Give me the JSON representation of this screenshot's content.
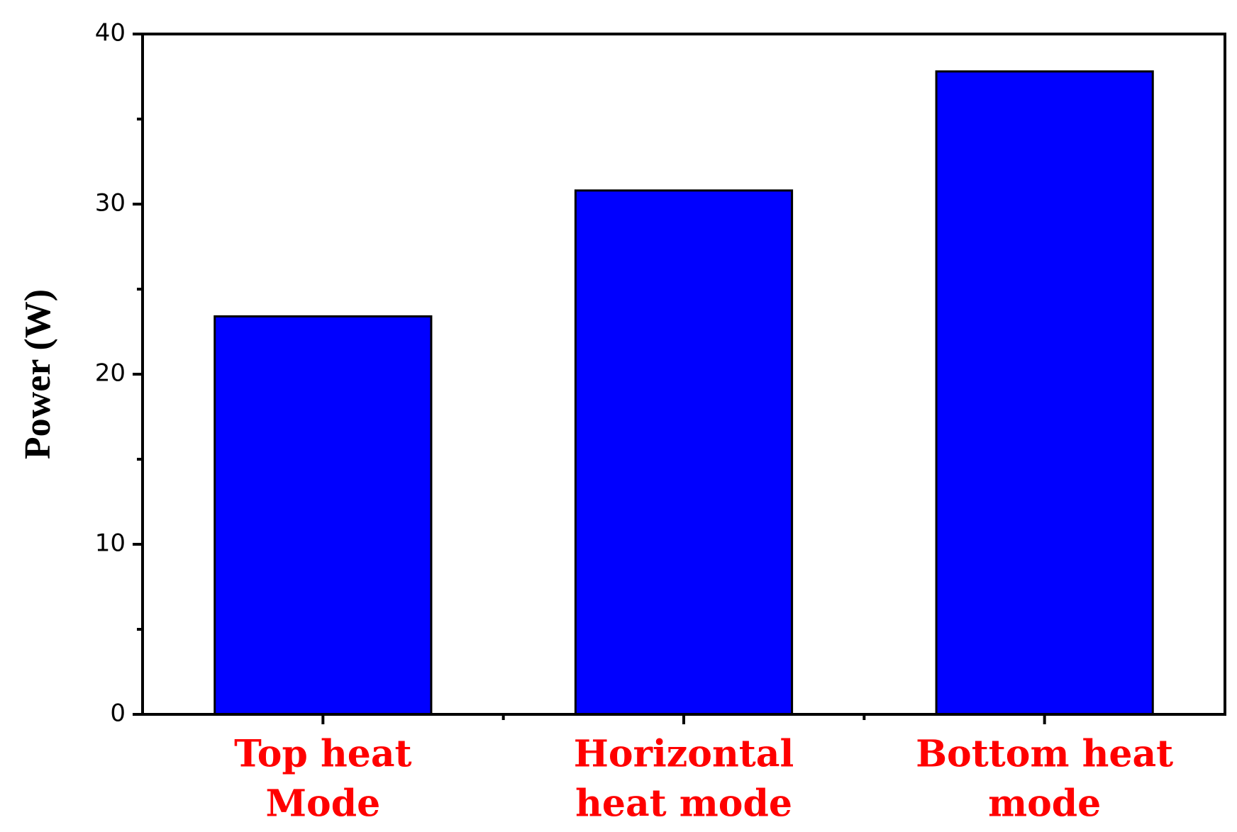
{
  "chart_data": {
    "type": "bar",
    "y_label": "Power (W)",
    "categories": [
      [
        "Top heat",
        "Mode"
      ],
      [
        "Horizontal",
        "heat mode"
      ],
      [
        "Bottom heat",
        "mode"
      ]
    ],
    "category_color": "#ff0000",
    "values": [
      23.4,
      30.8,
      37.8
    ],
    "color": "#0000ff",
    "edge_color": "#000000",
    "ylim": [
      0,
      40
    ],
    "yticks": [
      0,
      10,
      20,
      30,
      40
    ],
    "yminorticks": [
      5,
      15,
      25,
      35
    ],
    "grid": false
  }
}
